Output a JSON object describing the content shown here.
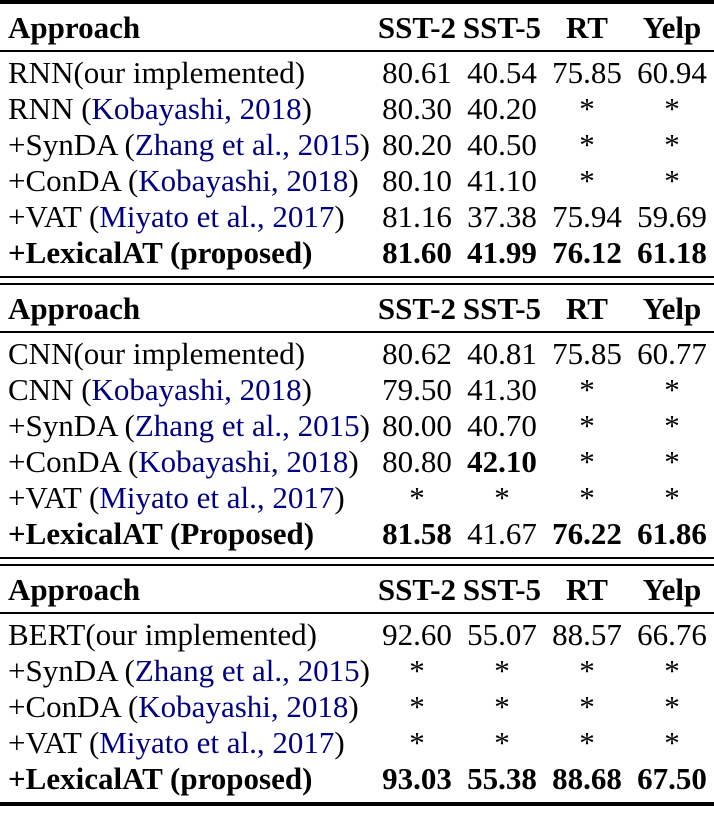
{
  "page": {
    "background": "#ffffff",
    "text_color": "#000000",
    "citation_color": "#000080"
  },
  "columns": [
    "Approach",
    "SST-2",
    "SST-5",
    "RT",
    "Yelp"
  ],
  "tables": [
    {
      "name": "rnn-results",
      "rows": [
        {
          "bold": false,
          "label": [
            {
              "text": "RNN(our implemented)",
              "cite": false
            }
          ],
          "values": [
            {
              "text": "80.61",
              "bold": false
            },
            {
              "text": "40.54",
              "bold": false
            },
            {
              "text": "75.85",
              "bold": false
            },
            {
              "text": "60.94",
              "bold": false
            }
          ]
        },
        {
          "bold": false,
          "label": [
            {
              "text": "RNN (",
              "cite": false
            },
            {
              "text": "Kobayashi, 2018",
              "cite": true
            },
            {
              "text": ")",
              "cite": false
            }
          ],
          "values": [
            {
              "text": "80.30",
              "bold": false
            },
            {
              "text": "40.20",
              "bold": false
            },
            {
              "text": "*",
              "bold": false
            },
            {
              "text": "*",
              "bold": false
            }
          ]
        },
        {
          "bold": false,
          "label": [
            {
              "text": "+SynDA (",
              "cite": false
            },
            {
              "text": "Zhang et al., 2015",
              "cite": true
            },
            {
              "text": ")",
              "cite": false
            }
          ],
          "values": [
            {
              "text": "80.20",
              "bold": false
            },
            {
              "text": "40.50",
              "bold": false
            },
            {
              "text": "*",
              "bold": false
            },
            {
              "text": "*",
              "bold": false
            }
          ]
        },
        {
          "bold": false,
          "label": [
            {
              "text": "+ConDA (",
              "cite": false
            },
            {
              "text": "Kobayashi, 2018",
              "cite": true
            },
            {
              "text": ")",
              "cite": false
            }
          ],
          "values": [
            {
              "text": "80.10",
              "bold": false
            },
            {
              "text": "41.10",
              "bold": false
            },
            {
              "text": "*",
              "bold": false
            },
            {
              "text": "*",
              "bold": false
            }
          ]
        },
        {
          "bold": false,
          "label": [
            {
              "text": "+VAT (",
              "cite": false
            },
            {
              "text": "Miyato et al., 2017",
              "cite": true
            },
            {
              "text": ")",
              "cite": false
            }
          ],
          "values": [
            {
              "text": "81.16",
              "bold": false
            },
            {
              "text": "37.38",
              "bold": false
            },
            {
              "text": "75.94",
              "bold": false
            },
            {
              "text": "59.69",
              "bold": false
            }
          ]
        },
        {
          "bold": true,
          "label": [
            {
              "text": "+LexicalAT (proposed)",
              "cite": false
            }
          ],
          "values": [
            {
              "text": "81.60",
              "bold": true
            },
            {
              "text": "41.99",
              "bold": true
            },
            {
              "text": "76.12",
              "bold": true
            },
            {
              "text": "61.18",
              "bold": true
            }
          ]
        }
      ]
    },
    {
      "name": "cnn-results",
      "rows": [
        {
          "bold": false,
          "label": [
            {
              "text": "CNN(our implemented)",
              "cite": false
            }
          ],
          "values": [
            {
              "text": "80.62",
              "bold": false
            },
            {
              "text": "40.81",
              "bold": false
            },
            {
              "text": "75.85",
              "bold": false
            },
            {
              "text": "60.77",
              "bold": false
            }
          ]
        },
        {
          "bold": false,
          "label": [
            {
              "text": "CNN (",
              "cite": false
            },
            {
              "text": "Kobayashi, 2018",
              "cite": true
            },
            {
              "text": ")",
              "cite": false
            }
          ],
          "values": [
            {
              "text": "79.50",
              "bold": false
            },
            {
              "text": "41.30",
              "bold": false
            },
            {
              "text": "*",
              "bold": false
            },
            {
              "text": "*",
              "bold": false
            }
          ]
        },
        {
          "bold": false,
          "label": [
            {
              "text": "+SynDA (",
              "cite": false
            },
            {
              "text": "Zhang et al., 2015",
              "cite": true
            },
            {
              "text": ")",
              "cite": false
            }
          ],
          "values": [
            {
              "text": "80.00",
              "bold": false
            },
            {
              "text": "40.70",
              "bold": false
            },
            {
              "text": "*",
              "bold": false
            },
            {
              "text": "*",
              "bold": false
            }
          ]
        },
        {
          "bold": false,
          "label": [
            {
              "text": "+ConDA (",
              "cite": false
            },
            {
              "text": "Kobayashi, 2018",
              "cite": true
            },
            {
              "text": ")",
              "cite": false
            }
          ],
          "values": [
            {
              "text": "80.80",
              "bold": false
            },
            {
              "text": "42.10",
              "bold": true
            },
            {
              "text": "*",
              "bold": false
            },
            {
              "text": "*",
              "bold": false
            }
          ]
        },
        {
          "bold": false,
          "label": [
            {
              "text": "+VAT (",
              "cite": false
            },
            {
              "text": "Miyato et al., 2017",
              "cite": true
            },
            {
              "text": ")",
              "cite": false
            }
          ],
          "values": [
            {
              "text": "*",
              "bold": false
            },
            {
              "text": "*",
              "bold": false
            },
            {
              "text": "*",
              "bold": false
            },
            {
              "text": "*",
              "bold": false
            }
          ]
        },
        {
          "bold": true,
          "label": [
            {
              "text": "+LexicalAT (Proposed)",
              "cite": false
            }
          ],
          "values": [
            {
              "text": "81.58",
              "bold": true
            },
            {
              "text": "41.67",
              "bold": false
            },
            {
              "text": "76.22",
              "bold": true
            },
            {
              "text": "61.86",
              "bold": true
            }
          ]
        }
      ]
    },
    {
      "name": "bert-results",
      "rows": [
        {
          "bold": false,
          "label": [
            {
              "text": "BERT(our implemented)",
              "cite": false
            }
          ],
          "values": [
            {
              "text": "92.60",
              "bold": false
            },
            {
              "text": "55.07",
              "bold": false
            },
            {
              "text": "88.57",
              "bold": false
            },
            {
              "text": "66.76",
              "bold": false
            }
          ]
        },
        {
          "bold": false,
          "label": [
            {
              "text": "+SynDA (",
              "cite": false
            },
            {
              "text": "Zhang et al., 2015",
              "cite": true
            },
            {
              "text": ")",
              "cite": false
            }
          ],
          "values": [
            {
              "text": "*",
              "bold": false
            },
            {
              "text": "*",
              "bold": false
            },
            {
              "text": "*",
              "bold": false
            },
            {
              "text": "*",
              "bold": false
            }
          ]
        },
        {
          "bold": false,
          "label": [
            {
              "text": "+ConDA (",
              "cite": false
            },
            {
              "text": "Kobayashi, 2018",
              "cite": true
            },
            {
              "text": ")",
              "cite": false
            }
          ],
          "values": [
            {
              "text": "*",
              "bold": false
            },
            {
              "text": "*",
              "bold": false
            },
            {
              "text": "*",
              "bold": false
            },
            {
              "text": "*",
              "bold": false
            }
          ]
        },
        {
          "bold": false,
          "label": [
            {
              "text": "+VAT (",
              "cite": false
            },
            {
              "text": "Miyato et al., 2017",
              "cite": true
            },
            {
              "text": ")",
              "cite": false
            }
          ],
          "values": [
            {
              "text": "*",
              "bold": false
            },
            {
              "text": "*",
              "bold": false
            },
            {
              "text": "*",
              "bold": false
            },
            {
              "text": "*",
              "bold": false
            }
          ]
        },
        {
          "bold": true,
          "label": [
            {
              "text": "+LexicalAT (proposed)",
              "cite": false
            }
          ],
          "values": [
            {
              "text": "93.03",
              "bold": true
            },
            {
              "text": "55.38",
              "bold": true
            },
            {
              "text": "88.68",
              "bold": true
            },
            {
              "text": "67.50",
              "bold": true
            }
          ]
        }
      ]
    }
  ]
}
